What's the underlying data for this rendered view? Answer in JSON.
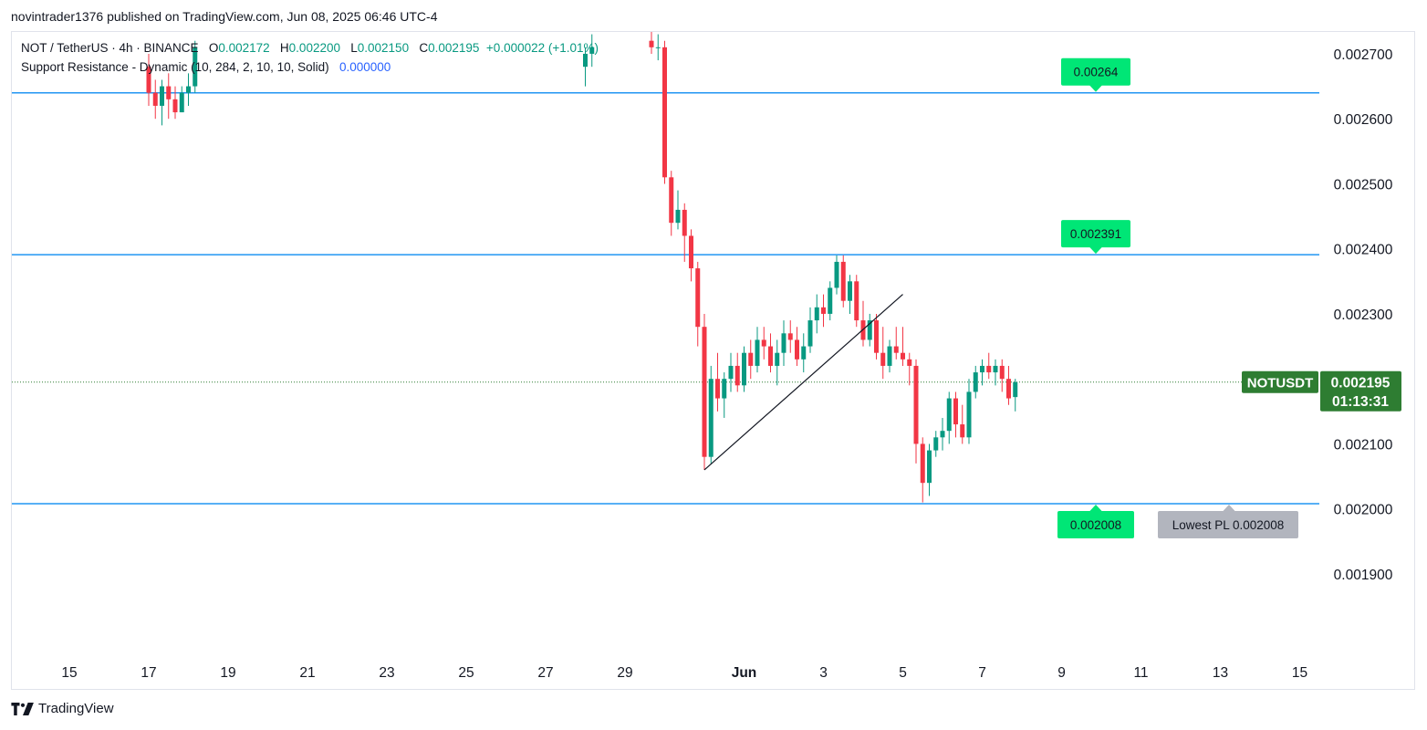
{
  "header": {
    "published_text": "novintrader1376 published on TradingView.com, Jun 08, 2025 06:46 UTC-4"
  },
  "legend": {
    "symbol_line": "NOT / TetherUS · 4h · BINANCE",
    "open_label": "O",
    "open": "0.002172",
    "high_label": "H",
    "high": "0.002200",
    "low_label": "L",
    "low": "0.002150",
    "close_label": "C",
    "close": "0.002195",
    "change": "+0.000022 (+1.01%)",
    "indicator": "Support Resistance - Dynamic (10, 284, 2, 10, 10, Solid)",
    "indicator_value": "0.000000"
  },
  "footer": {
    "brand": "TradingView"
  },
  "colors": {
    "up": "#089981",
    "down": "#f23645",
    "level_line": "#2196f3",
    "label_green": "#00e676",
    "price_tag": "#2e7d32",
    "lowest_tag": "#b2b5be"
  },
  "chart_data": {
    "type": "candlestick",
    "symbol": "NOTUSDT",
    "last_price": "0.002195",
    "countdown": "01:13:31",
    "y_range": [
      0.001775,
      0.002735
    ],
    "y_ticks": [
      "0.002700",
      "0.002600",
      "0.002500",
      "0.002400",
      "0.002300",
      "0.002200",
      "0.002100",
      "0.002000",
      "0.001900"
    ],
    "x_ticks": [
      "15",
      "17",
      "19",
      "21",
      "23",
      "25",
      "27",
      "29",
      "Jun",
      "3",
      "5",
      "7",
      "9",
      "11",
      "13",
      "15"
    ],
    "levels": [
      {
        "price": 0.00264,
        "label": "0.00264",
        "label_side": "above"
      },
      {
        "price": 0.002391,
        "label": "0.002391",
        "label_side": "above"
      },
      {
        "price": 0.002008,
        "label": "0.002008",
        "label_side": "below"
      }
    ],
    "lowest_label": "Lowest PL 0.002008",
    "trendline": {
      "from": {
        "date": "May 31 00:00",
        "price": 0.00206
      },
      "to": {
        "date": "Jun 5 00:00",
        "price": 0.00233
      }
    },
    "candles": [
      {
        "date": "May 17 00:00",
        "o": 0.00268,
        "h": 0.0027,
        "l": 0.00262,
        "c": 0.00264
      },
      {
        "date": "May 17 04:00",
        "o": 0.00264,
        "h": 0.00266,
        "l": 0.0026,
        "c": 0.00262
      },
      {
        "date": "May 17 08:00",
        "o": 0.00262,
        "h": 0.00266,
        "l": 0.00259,
        "c": 0.00265
      },
      {
        "date": "May 17 12:00",
        "o": 0.00265,
        "h": 0.00267,
        "l": 0.0026,
        "c": 0.00263
      },
      {
        "date": "May 17 16:00",
        "o": 0.00263,
        "h": 0.00265,
        "l": 0.0026,
        "c": 0.00261
      },
      {
        "date": "May 17 20:00",
        "o": 0.00261,
        "h": 0.00265,
        "l": 0.00261,
        "c": 0.00264
      },
      {
        "date": "May 18 00:00",
        "o": 0.00264,
        "h": 0.00267,
        "l": 0.00262,
        "c": 0.00265
      },
      {
        "date": "May 18 04:00",
        "o": 0.00265,
        "h": 0.00272,
        "l": 0.00264,
        "c": 0.00271
      },
      {
        "date": "May 28 00:00",
        "o": 0.00268,
        "h": 0.00271,
        "l": 0.00265,
        "c": 0.0027
      },
      {
        "date": "May 28 04:00",
        "o": 0.0027,
        "h": 0.00273,
        "l": 0.00268,
        "c": 0.00271
      },
      {
        "date": "May 29 16:00",
        "o": 0.00272,
        "h": 0.00274,
        "l": 0.0027,
        "c": 0.00271
      },
      {
        "date": "May 29 20:00",
        "o": 0.00271,
        "h": 0.00273,
        "l": 0.00269,
        "c": 0.00271
      },
      {
        "date": "May 30 00:00",
        "o": 0.00271,
        "h": 0.00272,
        "l": 0.0025,
        "c": 0.00251
      },
      {
        "date": "May 30 04:00",
        "o": 0.00251,
        "h": 0.00252,
        "l": 0.00242,
        "c": 0.00244
      },
      {
        "date": "May 30 08:00",
        "o": 0.00244,
        "h": 0.00249,
        "l": 0.00243,
        "c": 0.00246
      },
      {
        "date": "May 30 12:00",
        "o": 0.00246,
        "h": 0.00247,
        "l": 0.00238,
        "c": 0.00242
      },
      {
        "date": "May 30 16:00",
        "o": 0.00242,
        "h": 0.00243,
        "l": 0.00235,
        "c": 0.00237
      },
      {
        "date": "May 30 20:00",
        "o": 0.00237,
        "h": 0.00238,
        "l": 0.00225,
        "c": 0.00228
      },
      {
        "date": "May 31 00:00",
        "o": 0.00228,
        "h": 0.0023,
        "l": 0.00206,
        "c": 0.00208
      },
      {
        "date": "May 31 04:00",
        "o": 0.00208,
        "h": 0.00222,
        "l": 0.00207,
        "c": 0.0022
      },
      {
        "date": "May 31 08:00",
        "o": 0.0022,
        "h": 0.00224,
        "l": 0.00215,
        "c": 0.00217
      },
      {
        "date": "May 31 12:00",
        "o": 0.00217,
        "h": 0.00221,
        "l": 0.00214,
        "c": 0.0022
      },
      {
        "date": "May 31 16:00",
        "o": 0.0022,
        "h": 0.00224,
        "l": 0.00218,
        "c": 0.00222
      },
      {
        "date": "May 31 20:00",
        "o": 0.00222,
        "h": 0.00224,
        "l": 0.00218,
        "c": 0.00219
      },
      {
        "date": "Jun 1 00:00",
        "o": 0.00219,
        "h": 0.00225,
        "l": 0.00218,
        "c": 0.00224
      },
      {
        "date": "Jun 1 04:00",
        "o": 0.00224,
        "h": 0.00226,
        "l": 0.0022,
        "c": 0.00222
      },
      {
        "date": "Jun 1 08:00",
        "o": 0.00222,
        "h": 0.00228,
        "l": 0.00221,
        "c": 0.00226
      },
      {
        "date": "Jun 1 12:00",
        "o": 0.00226,
        "h": 0.00228,
        "l": 0.00223,
        "c": 0.00225
      },
      {
        "date": "Jun 1 16:00",
        "o": 0.00225,
        "h": 0.00227,
        "l": 0.00221,
        "c": 0.00222
      },
      {
        "date": "Jun 1 20:00",
        "o": 0.00222,
        "h": 0.00226,
        "l": 0.00219,
        "c": 0.00224
      },
      {
        "date": "Jun 2 00:00",
        "o": 0.00224,
        "h": 0.00229,
        "l": 0.00222,
        "c": 0.00227
      },
      {
        "date": "Jun 2 04:00",
        "o": 0.00227,
        "h": 0.00229,
        "l": 0.00224,
        "c": 0.00226
      },
      {
        "date": "Jun 2 08:00",
        "o": 0.00226,
        "h": 0.00228,
        "l": 0.00222,
        "c": 0.00223
      },
      {
        "date": "Jun 2 12:00",
        "o": 0.00223,
        "h": 0.00227,
        "l": 0.00221,
        "c": 0.00225
      },
      {
        "date": "Jun 2 16:00",
        "o": 0.00225,
        "h": 0.00231,
        "l": 0.00224,
        "c": 0.00229
      },
      {
        "date": "Jun 2 20:00",
        "o": 0.00229,
        "h": 0.00233,
        "l": 0.00227,
        "c": 0.00231
      },
      {
        "date": "Jun 3 00:00",
        "o": 0.00231,
        "h": 0.00233,
        "l": 0.00228,
        "c": 0.0023
      },
      {
        "date": "Jun 3 04:00",
        "o": 0.0023,
        "h": 0.00235,
        "l": 0.00229,
        "c": 0.00234
      },
      {
        "date": "Jun 3 08:00",
        "o": 0.00234,
        "h": 0.00239,
        "l": 0.00233,
        "c": 0.00238
      },
      {
        "date": "Jun 3 12:00",
        "o": 0.00238,
        "h": 0.00239,
        "l": 0.00231,
        "c": 0.00232
      },
      {
        "date": "Jun 3 16:00",
        "o": 0.00232,
        "h": 0.00236,
        "l": 0.0023,
        "c": 0.00235
      },
      {
        "date": "Jun 3 20:00",
        "o": 0.00235,
        "h": 0.00236,
        "l": 0.00228,
        "c": 0.00229
      },
      {
        "date": "Jun 4 00:00",
        "o": 0.00229,
        "h": 0.00232,
        "l": 0.00225,
        "c": 0.00226
      },
      {
        "date": "Jun 4 04:00",
        "o": 0.00226,
        "h": 0.0023,
        "l": 0.00225,
        "c": 0.00229
      },
      {
        "date": "Jun 4 08:00",
        "o": 0.00229,
        "h": 0.0023,
        "l": 0.00223,
        "c": 0.00224
      },
      {
        "date": "Jun 4 12:00",
        "o": 0.00224,
        "h": 0.00228,
        "l": 0.0022,
        "c": 0.00222
      },
      {
        "date": "Jun 4 16:00",
        "o": 0.00222,
        "h": 0.00226,
        "l": 0.00221,
        "c": 0.00225
      },
      {
        "date": "Jun 4 20:00",
        "o": 0.00225,
        "h": 0.00228,
        "l": 0.00223,
        "c": 0.00224
      },
      {
        "date": "Jun 5 00:00",
        "o": 0.00224,
        "h": 0.00228,
        "l": 0.00222,
        "c": 0.00223
      },
      {
        "date": "Jun 5 04:00",
        "o": 0.00223,
        "h": 0.00224,
        "l": 0.00219,
        "c": 0.00222
      },
      {
        "date": "Jun 5 08:00",
        "o": 0.00222,
        "h": 0.00223,
        "l": 0.00207,
        "c": 0.0021
      },
      {
        "date": "Jun 5 12:00",
        "o": 0.0021,
        "h": 0.00211,
        "l": 0.00201,
        "c": 0.00204
      },
      {
        "date": "Jun 5 16:00",
        "o": 0.00204,
        "h": 0.0021,
        "l": 0.00202,
        "c": 0.00209
      },
      {
        "date": "Jun 5 20:00",
        "o": 0.00209,
        "h": 0.00212,
        "l": 0.00208,
        "c": 0.00211
      },
      {
        "date": "Jun 6 00:00",
        "o": 0.00211,
        "h": 0.00214,
        "l": 0.00209,
        "c": 0.00212
      },
      {
        "date": "Jun 6 04:00",
        "o": 0.00212,
        "h": 0.00218,
        "l": 0.0021,
        "c": 0.00217
      },
      {
        "date": "Jun 6 08:00",
        "o": 0.00217,
        "h": 0.00218,
        "l": 0.00211,
        "c": 0.00213
      },
      {
        "date": "Jun 6 12:00",
        "o": 0.00213,
        "h": 0.00216,
        "l": 0.0021,
        "c": 0.00211
      },
      {
        "date": "Jun 6 16:00",
        "o": 0.00211,
        "h": 0.0022,
        "l": 0.0021,
        "c": 0.00218
      },
      {
        "date": "Jun 6 20:00",
        "o": 0.00218,
        "h": 0.00222,
        "l": 0.00217,
        "c": 0.00221
      },
      {
        "date": "Jun 7 00:00",
        "o": 0.00221,
        "h": 0.00223,
        "l": 0.00219,
        "c": 0.00222
      },
      {
        "date": "Jun 7 04:00",
        "o": 0.00222,
        "h": 0.00224,
        "l": 0.0022,
        "c": 0.00221
      },
      {
        "date": "Jun 7 08:00",
        "o": 0.00221,
        "h": 0.00223,
        "l": 0.00219,
        "c": 0.00222
      },
      {
        "date": "Jun 7 12:00",
        "o": 0.00222,
        "h": 0.00223,
        "l": 0.00218,
        "c": 0.0022
      },
      {
        "date": "Jun 7 16:00",
        "o": 0.0022,
        "h": 0.00222,
        "l": 0.00216,
        "c": 0.00217
      },
      {
        "date": "Jun 7 20:00",
        "o": 0.002172,
        "h": 0.0022,
        "l": 0.00215,
        "c": 0.002195
      }
    ]
  }
}
